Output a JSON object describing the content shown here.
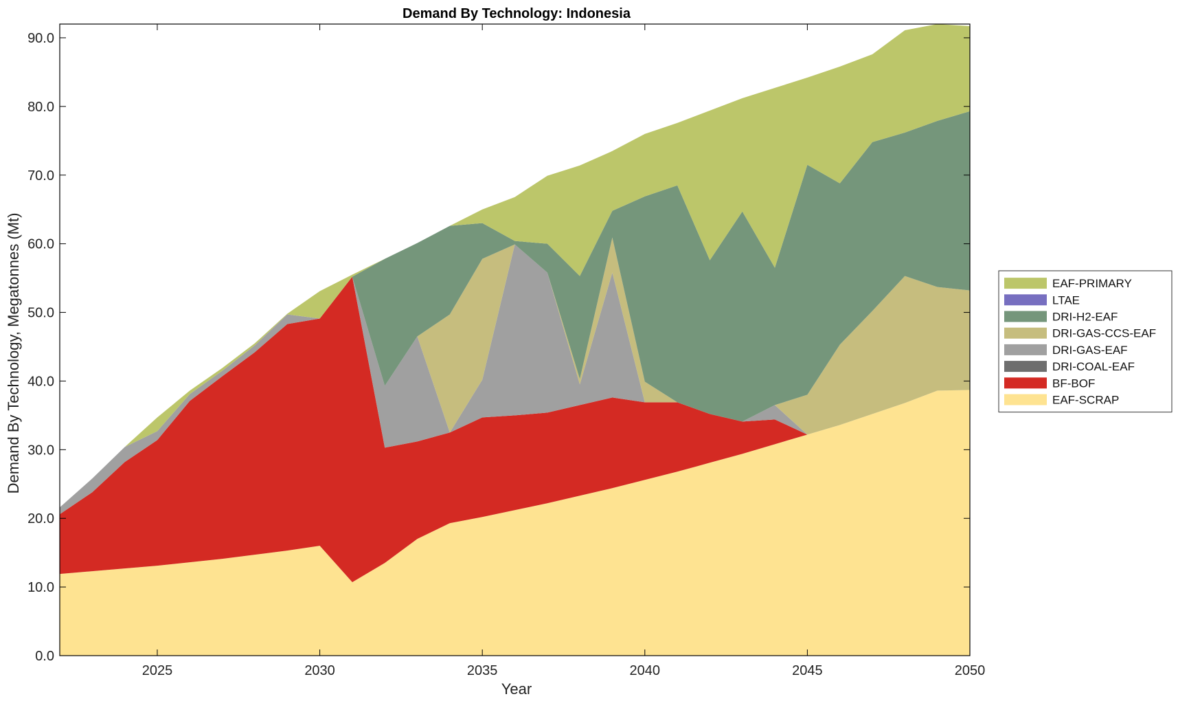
{
  "chart_data": {
    "type": "area",
    "stacked": true,
    "title": "Demand By Technology: Indonesia",
    "xlabel": "Year",
    "ylabel": "Demand By Technology, Megatonnes (Mt)",
    "xlim": [
      2022,
      2050
    ],
    "ylim": [
      0,
      92
    ],
    "xticks": [
      2025,
      2030,
      2035,
      2040,
      2045,
      2050
    ],
    "xtick_labels": [
      "2025",
      "2030",
      "2035",
      "2040",
      "2045",
      "2050"
    ],
    "yticks": [
      0,
      10,
      20,
      30,
      40,
      50,
      60,
      70,
      80,
      90
    ],
    "ytick_labels": [
      "0.0",
      "10.0",
      "20.0",
      "30.0",
      "40.0",
      "50.0",
      "60.0",
      "70.0",
      "80.0",
      "90.0"
    ],
    "grid": false,
    "legend_position": "right",
    "x": [
      2022,
      2023,
      2024,
      2025,
      2026,
      2027,
      2028,
      2029,
      2030,
      2031,
      2032,
      2033,
      2034,
      2035,
      2036,
      2037,
      2038,
      2039,
      2040,
      2041,
      2042,
      2043,
      2044,
      2045,
      2046,
      2047,
      2048,
      2049,
      2050
    ],
    "series": [
      {
        "name": "EAF-SCRAP",
        "color": "#FEE391",
        "values": [
          11.9,
          12.3,
          12.7,
          13.1,
          13.6,
          14.1,
          14.7,
          15.3,
          16.0,
          10.7,
          13.5,
          17.0,
          19.3,
          20.2,
          21.2,
          22.2,
          23.3,
          24.4,
          25.6,
          26.8,
          28.1,
          29.4,
          30.8,
          32.2,
          33.6,
          35.2,
          36.8,
          38.6,
          38.7
        ]
      },
      {
        "name": "BF-BOF",
        "color": "#D42A23",
        "values": [
          8.7,
          11.5,
          15.5,
          18.3,
          23.5,
          26.6,
          29.5,
          33.0,
          33.1,
          44.5,
          16.8,
          14.2,
          13.2,
          14.5,
          13.8,
          13.2,
          13.2,
          13.2,
          11.3,
          10.1,
          7.1,
          4.7,
          3.6,
          0.0,
          0.0,
          0.0,
          0.0,
          0.0,
          0.0
        ]
      },
      {
        "name": "DRI-COAL-EAF",
        "color": "#6E6E6E",
        "values": [
          0,
          0,
          0,
          0,
          0,
          0,
          0,
          0,
          0,
          0,
          0,
          0,
          0,
          0,
          0,
          0,
          0,
          0,
          0,
          0,
          0,
          0,
          0,
          0,
          0,
          0,
          0,
          0,
          0
        ]
      },
      {
        "name": "DRI-GAS-EAF",
        "color": "#A0A0A0",
        "values": [
          1.0,
          2.0,
          2.2,
          1.3,
          1.0,
          0.8,
          1.0,
          1.4,
          0.0,
          0.0,
          9.0,
          15.3,
          0.0,
          5.5,
          24.9,
          20.4,
          3.0,
          18.2,
          0.0,
          0.0,
          0.0,
          0.0,
          2.1,
          0.0,
          0.0,
          0.0,
          0.0,
          0.0,
          0.0
        ]
      },
      {
        "name": "DRI-GAS-CCS-EAF",
        "color": "#C6BD7E",
        "values": [
          0,
          0,
          0,
          0,
          0,
          0,
          0,
          0,
          0,
          0,
          0,
          0,
          17.2,
          17.6,
          0.0,
          0.0,
          0.8,
          5.1,
          3.0,
          0.0,
          0.0,
          0.0,
          0.0,
          5.8,
          11.7,
          15.0,
          18.5,
          15.1,
          14.5
        ]
      },
      {
        "name": "DRI-H2-EAF",
        "color": "#75967B",
        "values": [
          0,
          0,
          0,
          0,
          0,
          0,
          0,
          0,
          0,
          0,
          18.5,
          13.6,
          12.9,
          5.2,
          0.5,
          4.2,
          15.0,
          3.9,
          27.0,
          31.6,
          22.4,
          30.6,
          20.0,
          33.5,
          23.5,
          24.6,
          20.9,
          24.2,
          26.1
        ]
      },
      {
        "name": "LTAE",
        "color": "#776FC0",
        "values": [
          0,
          0,
          0,
          0,
          0,
          0,
          0,
          0,
          0,
          0,
          0,
          0,
          0,
          0,
          0,
          0,
          0,
          0,
          0,
          0,
          0,
          0,
          0,
          0,
          0,
          0,
          0,
          0,
          0
        ]
      },
      {
        "name": "EAF-PRIMARY",
        "color": "#BCC66A",
        "values": [
          0.0,
          0.0,
          0.0,
          2.0,
          0.5,
          0.4,
          0.3,
          0.1,
          4.0,
          0.3,
          0.0,
          0.0,
          0.0,
          2.0,
          6.4,
          9.9,
          16.1,
          8.7,
          9.1,
          9.1,
          21.8,
          16.5,
          26.2,
          12.7,
          17.0,
          12.8,
          14.9,
          14.1,
          12.4
        ]
      }
    ],
    "legend_order": [
      "EAF-PRIMARY",
      "LTAE",
      "DRI-H2-EAF",
      "DRI-GAS-CCS-EAF",
      "DRI-GAS-EAF",
      "DRI-COAL-EAF",
      "BF-BOF",
      "EAF-SCRAP"
    ]
  }
}
